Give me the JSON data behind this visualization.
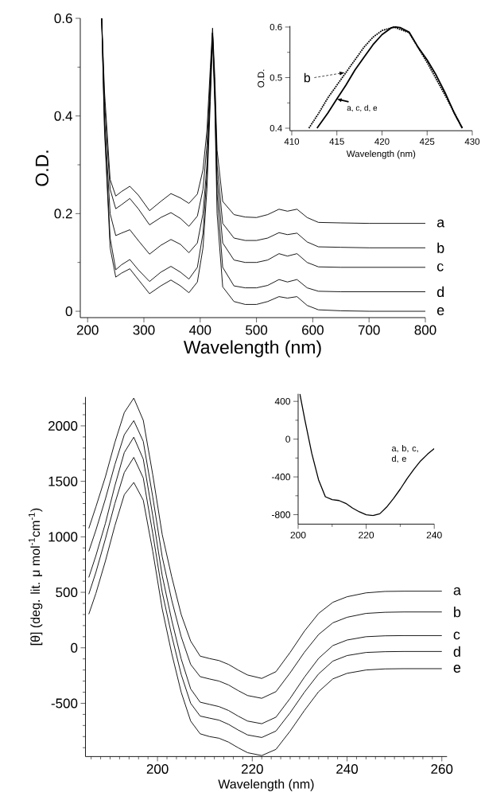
{
  "chart_data": [
    {
      "type": "line",
      "xlabel": "Wavelength (nm)",
      "ylabel": "O.D.",
      "xlim": [
        187,
        800
      ],
      "ylim": [
        -0.013,
        0.6
      ],
      "xticks": [
        200,
        300,
        400,
        500,
        600,
        700,
        800
      ],
      "yticks": [
        {
          "value": 0,
          "label": "0"
        },
        {
          "value": 0.1,
          "label": null
        },
        0.2,
        {
          "value": 0.3,
          "label": null
        },
        0.4,
        {
          "value": 0.5,
          "label": null
        },
        0.6
      ],
      "x": [
        225,
        230,
        240,
        250,
        260,
        275,
        290,
        310,
        330,
        348,
        365,
        380,
        395,
        405,
        412,
        418,
        422,
        426,
        430,
        440,
        460,
        480,
        500,
        520,
        540,
        555,
        572,
        590,
        610,
        650,
        700,
        800
      ],
      "series": [
        {
          "name": "a",
          "color": "#000000",
          "values": [
            0.6,
            0.45,
            0.27,
            0.236,
            0.245,
            0.256,
            0.238,
            0.206,
            0.225,
            0.241,
            0.232,
            0.221,
            0.24,
            0.29,
            0.37,
            0.5,
            0.58,
            0.48,
            0.33,
            0.225,
            0.198,
            0.193,
            0.192,
            0.198,
            0.209,
            0.205,
            0.209,
            0.192,
            0.182,
            0.181,
            0.18,
            0.18
          ]
        },
        {
          "name": "b",
          "color": "#000000",
          "values": [
            0.6,
            0.43,
            0.25,
            0.21,
            0.218,
            0.231,
            0.21,
            0.177,
            0.192,
            0.202,
            0.19,
            0.174,
            0.195,
            0.25,
            0.34,
            0.48,
            0.57,
            0.46,
            0.3,
            0.18,
            0.15,
            0.145,
            0.145,
            0.15,
            0.161,
            0.157,
            0.16,
            0.142,
            0.132,
            0.131,
            0.13,
            0.13
          ]
        },
        {
          "name": "c",
          "color": "#000000",
          "values": [
            0.6,
            0.4,
            0.2,
            0.155,
            0.16,
            0.167,
            0.145,
            0.117,
            0.135,
            0.147,
            0.137,
            0.12,
            0.14,
            0.2,
            0.3,
            0.46,
            0.57,
            0.45,
            0.27,
            0.14,
            0.105,
            0.1,
            0.1,
            0.105,
            0.118,
            0.113,
            0.118,
            0.1,
            0.091,
            0.09,
            0.09,
            0.09
          ]
        },
        {
          "name": "d",
          "color": "#000000",
          "values": [
            0.6,
            0.38,
            0.15,
            0.085,
            0.095,
            0.106,
            0.085,
            0.061,
            0.08,
            0.092,
            0.08,
            0.066,
            0.09,
            0.16,
            0.28,
            0.45,
            0.57,
            0.44,
            0.24,
            0.09,
            0.052,
            0.048,
            0.048,
            0.053,
            0.065,
            0.06,
            0.065,
            0.048,
            0.041,
            0.04,
            0.04,
            0.04
          ]
        },
        {
          "name": "e",
          "color": "#000000",
          "values": [
            0.6,
            0.37,
            0.13,
            0.07,
            0.078,
            0.087,
            0.065,
            0.036,
            0.052,
            0.064,
            0.052,
            0.038,
            0.06,
            0.13,
            0.25,
            0.43,
            0.56,
            0.42,
            0.2,
            0.05,
            0.02,
            0.014,
            0.014,
            0.02,
            0.03,
            0.027,
            0.03,
            0.012,
            0.003,
            0.001,
            0,
            0
          ]
        }
      ]
    },
    {
      "type": "line",
      "xlabel": "Wavelength (nm)",
      "ylabel": "O.D.",
      "xlim": [
        409.8,
        430
      ],
      "ylim": [
        0.395,
        0.602
      ],
      "xticks": [
        410,
        415,
        420,
        425,
        430
      ],
      "yticks": [
        0.4,
        {
          "value": 0.45,
          "label": null
        },
        0.5,
        {
          "value": 0.55,
          "label": null
        },
        0.6
      ],
      "series": [
        {
          "name": "b",
          "color": "#000000",
          "line_style": "dotted",
          "x": [
            411.9,
            413,
            414,
            415,
            416,
            417,
            418,
            419,
            420,
            421.3,
            423,
            425,
            427,
            428.9
          ],
          "values": [
            0.4,
            0.43,
            0.46,
            0.485,
            0.51,
            0.535,
            0.56,
            0.58,
            0.593,
            0.6,
            0.589,
            0.53,
            0.465,
            0.4
          ]
        },
        {
          "name": "a, c, d, e",
          "color": "#000000",
          "line_style": "solid",
          "x": [
            412.8,
            414,
            415,
            416,
            417,
            418,
            419,
            420,
            421,
            421.5,
            422,
            423,
            424,
            425,
            426,
            427,
            428,
            428.9
          ],
          "values": [
            0.4,
            0.43,
            0.458,
            0.485,
            0.515,
            0.54,
            0.565,
            0.585,
            0.598,
            0.6,
            0.599,
            0.59,
            0.56,
            0.535,
            0.505,
            0.47,
            0.43,
            0.4
          ]
        }
      ]
    },
    {
      "type": "line",
      "xlabel": "Wavelength (nm)",
      "ylabel": "[θ] (deg. lit. μ mol$^{-1}$cm$^{-1}$)",
      "xlim": [
        184.8,
        261.1
      ],
      "ylim": [
        -980,
        2260
      ],
      "xticks": [
        {
          "value": 186,
          "label": null
        },
        {
          "value": 188,
          "label": null
        },
        {
          "value": 190,
          "label": null
        },
        {
          "value": 192,
          "label": null
        },
        {
          "value": 194,
          "label": null
        },
        {
          "value": 196,
          "label": null
        },
        {
          "value": 198,
          "label": null
        },
        200,
        {
          "value": 202,
          "label": null
        },
        {
          "value": 204,
          "label": null
        },
        {
          "value": 206,
          "label": null
        },
        {
          "value": 208,
          "label": null
        },
        {
          "value": 210,
          "label": null
        },
        {
          "value": 212,
          "label": null
        },
        {
          "value": 214,
          "label": null
        },
        {
          "value": 216,
          "label": null
        },
        {
          "value": 218,
          "label": null
        },
        220,
        {
          "value": 222,
          "label": null
        },
        {
          "value": 224,
          "label": null
        },
        {
          "value": 226,
          "label": null
        },
        {
          "value": 228,
          "label": null
        },
        {
          "value": 230,
          "label": null
        },
        {
          "value": 232,
          "label": null
        },
        {
          "value": 234,
          "label": null
        },
        {
          "value": 236,
          "label": null
        },
        {
          "value": 238,
          "label": null
        },
        240,
        {
          "value": 242,
          "label": null
        },
        {
          "value": 244,
          "label": null
        },
        {
          "value": 246,
          "label": null
        },
        {
          "value": 248,
          "label": null
        },
        {
          "value": 250,
          "label": null
        },
        {
          "value": 252,
          "label": null
        },
        {
          "value": 254,
          "label": null
        },
        {
          "value": 256,
          "label": null
        },
        {
          "value": 258,
          "label": null
        },
        260
      ],
      "yticks": [
        {
          "value": -900,
          "label": null
        },
        {
          "value": -800,
          "label": null
        },
        {
          "value": -700,
          "label": null
        },
        {
          "value": -600,
          "label": null
        },
        -500,
        {
          "value": -400,
          "label": null
        },
        {
          "value": -300,
          "label": null
        },
        {
          "value": -200,
          "label": null
        },
        {
          "value": -100,
          "label": null
        },
        0,
        {
          "value": 100,
          "label": null
        },
        {
          "value": 200,
          "label": null
        },
        {
          "value": 300,
          "label": null
        },
        {
          "value": 400,
          "label": null
        },
        500,
        {
          "value": 600,
          "label": null
        },
        {
          "value": 700,
          "label": null
        },
        {
          "value": 800,
          "label": null
        },
        {
          "value": 900,
          "label": null
        },
        1000,
        {
          "value": 1100,
          "label": null
        },
        {
          "value": 1200,
          "label": null
        },
        {
          "value": 1300,
          "label": null
        },
        {
          "value": 1400,
          "label": null
        },
        1500,
        {
          "value": 1600,
          "label": null
        },
        {
          "value": 1700,
          "label": null
        },
        {
          "value": 1800,
          "label": null
        },
        {
          "value": 1900,
          "label": null
        },
        2000,
        {
          "value": 2100,
          "label": null
        },
        {
          "value": 2200,
          "label": null
        }
      ],
      "x": [
        185.5,
        187,
        189,
        191,
        193,
        195,
        197,
        199,
        201,
        203,
        205,
        207,
        209,
        211,
        213,
        215,
        217,
        219,
        222,
        225,
        228,
        231,
        234,
        237,
        240,
        244,
        248,
        252,
        260
      ],
      "series": [
        {
          "name": "a",
          "color": "#000000",
          "values": [
            1076,
            1270,
            1540,
            1850,
            2120,
            2250,
            2050,
            1560,
            1020,
            640,
            300,
            60,
            -75,
            -97,
            -115,
            -150,
            -200,
            -245,
            -276,
            -215,
            -41,
            150,
            310,
            410,
            460,
            495,
            508,
            510,
            510
          ]
        },
        {
          "name": "b",
          "color": "#000000",
          "values": [
            869,
            1060,
            1340,
            1650,
            1920,
            2047,
            1860,
            1360,
            820,
            430,
            100,
            -150,
            -260,
            -281,
            -300,
            -335,
            -385,
            -430,
            -455,
            -395,
            -225,
            -40,
            120,
            225,
            275,
            310,
            320,
            323,
            323
          ]
        },
        {
          "name": "c",
          "color": "#000000",
          "values": [
            634,
            830,
            1120,
            1460,
            1760,
            1898,
            1700,
            1190,
            650,
            250,
            -100,
            -370,
            -490,
            -510,
            -530,
            -565,
            -615,
            -660,
            -684,
            -625,
            -455,
            -265,
            -95,
            20,
            70,
            100,
            108,
            110,
            110
          ]
        },
        {
          "name": "d",
          "color": "#000000",
          "values": [
            483,
            680,
            980,
            1300,
            1580,
            1716,
            1530,
            1030,
            500,
            110,
            -240,
            -500,
            -615,
            -634,
            -652,
            -690,
            -740,
            -785,
            -808,
            -750,
            -585,
            -400,
            -235,
            -120,
            -70,
            -42,
            -35,
            -33,
            -33
          ]
        },
        {
          "name": "e",
          "color": "#000000",
          "values": [
            303,
            490,
            780,
            1100,
            1380,
            1490,
            1330,
            870,
            350,
            -50,
            -400,
            -660,
            -775,
            -800,
            -815,
            -850,
            -900,
            -945,
            -971,
            -915,
            -750,
            -565,
            -395,
            -280,
            -230,
            -200,
            -190,
            -188,
            -188
          ]
        }
      ]
    },
    {
      "type": "line",
      "xlim": [
        200,
        240
      ],
      "ylim": [
        -900,
        480
      ],
      "xticks": [
        200,
        {
          "value": 210,
          "label": null
        },
        220,
        {
          "value": 230,
          "label": null
        },
        240
      ],
      "yticks": [
        {
          "value": -800,
          "label": "-800"
        },
        {
          "value": -600,
          "label": null
        },
        {
          "value": -400,
          "label": "-400"
        },
        {
          "value": -200,
          "label": null
        },
        0,
        {
          "value": 200,
          "label": null
        },
        400
      ],
      "x": [
        200.5,
        202,
        204,
        206,
        208,
        210,
        212,
        214,
        216,
        218,
        220,
        222,
        224,
        226,
        228,
        230,
        232,
        234,
        236,
        238,
        240
      ],
      "series": [
        {
          "name": "a, b, c, d, e",
          "color": "#000000",
          "values": [
            480,
            200,
            -150,
            -430,
            -610,
            -640,
            -650,
            -680,
            -730,
            -770,
            -800,
            -810,
            -790,
            -720,
            -630,
            -530,
            -420,
            -320,
            -230,
            -160,
            -100
          ]
        }
      ]
    }
  ]
}
